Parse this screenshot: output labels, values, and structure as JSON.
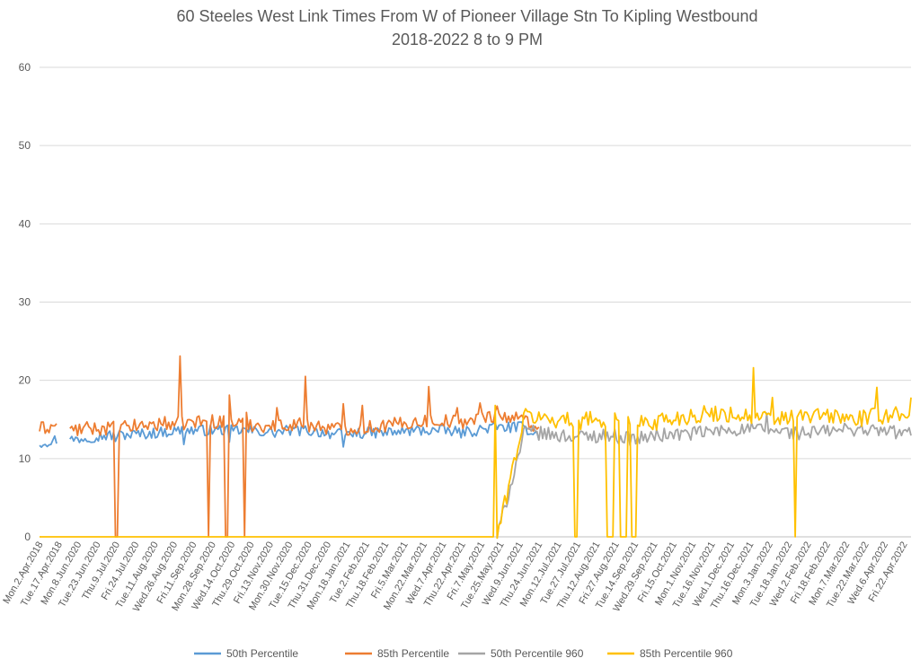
{
  "chart_data": {
    "type": "line",
    "title_lines": [
      "60 Steeles West Link Times From W of Pioneer Village Stn To Kipling Westbound",
      "2018-2022 8 to 9 PM"
    ],
    "xlabel": "",
    "ylabel": "",
    "ylim": [
      0,
      60
    ],
    "y_ticks": [
      0,
      10,
      20,
      30,
      40,
      50,
      60
    ],
    "grid": true,
    "legend_position": "bottom",
    "x_tick_labels": [
      "Mon.2.Apr.2018",
      "Tue.17.Apr.2018",
      "Mon.8.Jun.2020",
      "Tue.23.Jun.2020",
      "Thu.9.Jul.2020",
      "Fri.24.Jul.2020",
      "Tue.11.Aug.2020",
      "Wed.26.Aug.2020",
      "Fri.11.Sep.2020",
      "Mon.28.Sep.2020",
      "Wed.14.Oct.2020",
      "Thu.29.Oct.2020",
      "Fri.13.Nov.2020",
      "Mon.30.Nov.2020",
      "Tue.15.Dec.2020",
      "Thu.31.Dec.2020",
      "Mon.18.Jan.2021",
      "Tue.2.Feb.2021",
      "Thu.18.Feb.2021",
      "Fri.5.Mar.2021",
      "Mon.22.Mar.2021",
      "Wed.7.Apr.2021",
      "Thu.22.Apr.2021",
      "Fri.7.May.2021",
      "Tue.25.May.2021",
      "Wed.9.Jun.2021",
      "Thu.24.Jun.2021",
      "Mon.12.Jul.2021",
      "Tue.27.Jul.2021",
      "Thu.12.Aug.2021",
      "Fri.27.Aug.2021",
      "Tue.14.Sep.2021",
      "Wed.29.Sep.2021",
      "Fri.15.Oct.2021",
      "Mon.1.Nov.2021",
      "Tue.16.Nov.2021",
      "Wed.1.Dec.2021",
      "Thu.16.Dec.2021",
      "Mon.3.Jan.2022",
      "Tue.18.Jan.2022",
      "Wed.2.Feb.2022",
      "Fri.18.Feb.2022",
      "Mon.7.Mar.2022",
      "Tue.22.Mar.2022",
      "Wed.6.Apr.2022",
      "Fri.22.Apr.2022"
    ],
    "n_points": 460,
    "series": [
      {
        "name": "50th Percentile",
        "color": "#5B9BD5",
        "active_range": [
          0,
          264
        ],
        "gap_range": [
          10,
          15
        ],
        "base_values": [
          12.0,
          12.4,
          12.4,
          12.7,
          12.9,
          13.0,
          13.1,
          13.2,
          13.4,
          13.6,
          13.6,
          13.6,
          13.7,
          13.6,
          13.5,
          13.3,
          13.6,
          13.6,
          13.4,
          13.1,
          13.2,
          13.3,
          13.3,
          13.4,
          13.6,
          13.6,
          13.6,
          13.3,
          13.6,
          14.0,
          14.0,
          14.0,
          13.0
        ],
        "noise": 0.7,
        "spikes": [
          [
            40,
            12.2
          ],
          [
            76,
            11.8
          ],
          [
            100,
            12.1
          ],
          [
            160,
            11.5
          ]
        ],
        "drops": []
      },
      {
        "name": "85th Percentile",
        "color": "#ED7D31",
        "active_range": [
          0,
          264
        ],
        "gap_range": [
          10,
          15
        ],
        "base_values": [
          13.8,
          14.2,
          13.6,
          13.8,
          13.9,
          13.9,
          14.1,
          14.3,
          14.5,
          14.5,
          14.7,
          14.8,
          14.7,
          14.5,
          14.3,
          14.1,
          14.4,
          14.4,
          14.1,
          13.8,
          13.9,
          14.0,
          14.2,
          14.4,
          14.7,
          14.9,
          14.8,
          14.7,
          15.0,
          15.5,
          15.3,
          15.0,
          14.0
        ],
        "noise": 0.9,
        "spikes": [
          [
            74,
            23.1
          ],
          [
            100,
            18.1
          ],
          [
            140,
            20.5
          ],
          [
            205,
            19.2
          ],
          [
            109,
            15.9
          ],
          [
            125,
            16.5
          ],
          [
            160,
            17.0
          ],
          [
            170,
            16.8
          ],
          [
            220,
            16.5
          ],
          [
            232,
            17.1
          ],
          [
            241,
            16.7
          ]
        ],
        "drops": [
          [
            40,
            41
          ],
          [
            89,
            89
          ],
          [
            98,
            99
          ],
          [
            108,
            108
          ]
        ]
      },
      {
        "name": "50th Percentile 960",
        "color": "#A5A5A5",
        "active_range": [
          241,
          460
        ],
        "gap_range": null,
        "base_values": [
          0,
          13.5,
          13.0,
          12.8,
          13.0,
          12.5,
          13.0,
          13.2,
          13.5,
          13.8,
          13.6,
          13.2,
          13.5,
          13.8,
          13.5,
          13.2
        ],
        "noise": 0.9,
        "spikes": [
          [
            383,
            15.8
          ]
        ],
        "drops": []
      },
      {
        "name": "85th Percentile 960",
        "color": "#FFC000",
        "active_range": [
          0,
          460
        ],
        "gap_range": null,
        "base_values": [
          0,
          15.5,
          15.0,
          14.8,
          15.0,
          14.5,
          14.8,
          15.5,
          15.8,
          15.5,
          15.0,
          15.4,
          15.5,
          15.0,
          15.5,
          16.0
        ],
        "noise": 1.1,
        "spikes": [
          [
            240,
            16.8
          ],
          [
            290,
            16.0
          ],
          [
            307,
            16.8
          ],
          [
            376,
            21.6
          ],
          [
            386,
            17.8
          ],
          [
            441,
            19.1
          ],
          [
            459,
            17.8
          ],
          [
            328,
            15.8
          ]
        ],
        "drops": [
          [
            282,
            283
          ],
          [
            299,
            302
          ],
          [
            306,
            309
          ],
          [
            312,
            314
          ],
          [
            398,
            398
          ]
        ],
        "zero_until": 241
      }
    ]
  }
}
